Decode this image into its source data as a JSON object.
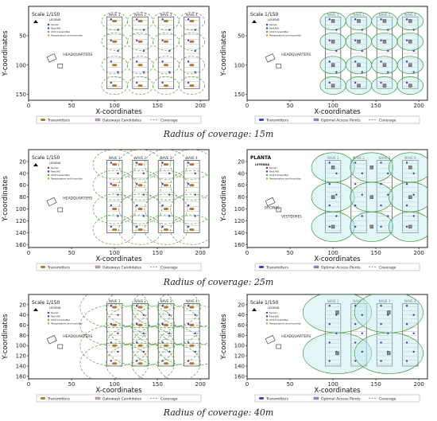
{
  "captions": [
    "Radius of coverage: 15m",
    "Radius of coverage: 25m",
    "Radius of coverage: 40m"
  ],
  "axis": {
    "xlabel": "X-coordinates",
    "ylabel": "Y-coordinates"
  },
  "scale_label": "Scale 1/150",
  "legend_title": "LEGEND",
  "legend_items": [
    "Server",
    "Fast.HiE",
    "CO2 transmitter",
    "Temperature and humidity"
  ],
  "headquarters": "HEADQUARTERS",
  "planta": "PLANTA",
  "leyenda": "LEYENDA",
  "oficinas": "OFICINAS",
  "vestidores": "VESTIDORES",
  "bottom_legend_left": [
    "Transmitters",
    "Gateways Candidates",
    "Coverage"
  ],
  "bottom_legend_right": [
    "Transmitters",
    "Optimal Access Points",
    "Coverage"
  ],
  "nave_labels": [
    "NAVE 1",
    "NAVE 2",
    "NAVE 3",
    "NAVE 4"
  ],
  "x_ticks": [
    "0",
    "50",
    "100",
    "150",
    "200"
  ],
  "rows": [
    {
      "y_ticks": [
        "50",
        "100",
        "150"
      ],
      "coverage_radius": 15
    },
    {
      "y_ticks": [
        "20",
        "40",
        "60",
        "80",
        "100",
        "120",
        "140",
        "160"
      ],
      "coverage_radius": 25
    },
    {
      "y_ticks": [
        "20",
        "40",
        "60",
        "80",
        "100",
        "120",
        "140",
        "160"
      ],
      "coverage_radius": 40
    }
  ],
  "colors": {
    "frame": "#222222",
    "transmitter": "#3b3bd6",
    "candidate": "#b07a2a",
    "coverage_dash": "#5a9a4a",
    "coverage_fill": "#bfe9ee",
    "access_point": "#2a2aa0",
    "nave": "#555555",
    "headquarters": "#444444"
  }
}
